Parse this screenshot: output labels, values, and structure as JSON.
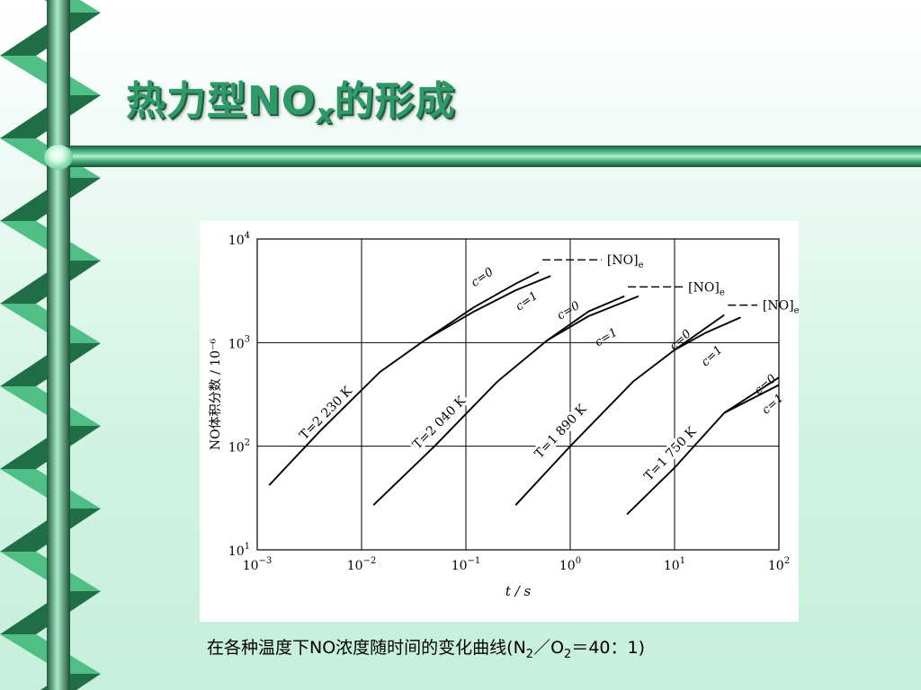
{
  "slide": {
    "title_main": "热力型NO",
    "title_sub": "x",
    "title_end": "的形成",
    "caption_pre": "在各种温度下NO浓度随时间的变化曲线(N",
    "caption_sub1": "2",
    "caption_mid": "／O",
    "caption_sub2": "2",
    "caption_post": "＝40：1)",
    "colors": {
      "accent": "#2f9a68",
      "rail_dark": "#1f6e46",
      "rail_light": "#4fbf86"
    }
  },
  "chart_data": {
    "type": "line",
    "xlabel": "t / s",
    "ylabel": "NO体积分数 / 10⁻⁶",
    "x_scale": "log",
    "y_scale": "log",
    "xlim": [
      0.001,
      100
    ],
    "ylim": [
      10,
      10000
    ],
    "grid": true,
    "x_ticks": [
      {
        "value": 0.001,
        "base": "10",
        "exp": "−3"
      },
      {
        "value": 0.01,
        "base": "10",
        "exp": "−2"
      },
      {
        "value": 0.1,
        "base": "10",
        "exp": "−1"
      },
      {
        "value": 1,
        "base": "10",
        "exp": "0"
      },
      {
        "value": 10,
        "base": "10",
        "exp": "1"
      },
      {
        "value": 100,
        "base": "10",
        "exp": "2"
      }
    ],
    "y_ticks": [
      {
        "value": 10,
        "base": "10",
        "exp": "1"
      },
      {
        "value": 100,
        "base": "10",
        "exp": "2"
      },
      {
        "value": 1000,
        "base": "10",
        "exp": "3"
      },
      {
        "value": 10000,
        "base": "10",
        "exp": "4"
      }
    ],
    "groups": [
      {
        "label": "T=2 230 K",
        "label_at": [
          0.0045,
          210
        ],
        "series": [
          {
            "name": "c=0",
            "points": [
              [
                0.0013,
                42
              ],
              [
                0.004,
                140
              ],
              [
                0.015,
                520
              ],
              [
                0.04,
                1050
              ],
              [
                0.12,
                2200
              ],
              [
                0.3,
                3700
              ],
              [
                0.5,
                4800
              ]
            ]
          },
          {
            "name": "c=1",
            "points": [
              [
                0.04,
                1050
              ],
              [
                0.12,
                2000
              ],
              [
                0.3,
                3200
              ],
              [
                0.65,
                4400
              ]
            ]
          }
        ],
        "c0_label_at": [
          0.15,
          4000
        ],
        "c1_label_at": [
          0.4,
          2350
        ],
        "equilibrium": {
          "label": "[NO]e",
          "value": 6300,
          "from": 0.5,
          "to": 2.0
        }
      },
      {
        "label": "T=2 040 K",
        "label_at": [
          0.055,
          170
        ],
        "series": [
          {
            "name": "c=0",
            "points": [
              [
                0.013,
                27
              ],
              [
                0.05,
                100
              ],
              [
                0.2,
                420
              ],
              [
                0.6,
                1050
              ],
              [
                1.5,
                2000
              ],
              [
                3.3,
                2800
              ]
            ]
          },
          {
            "name": "c=1",
            "points": [
              [
                0.6,
                1050
              ],
              [
                1.5,
                1800
              ],
              [
                4.5,
                2800
              ]
            ]
          }
        ],
        "c0_label_at": [
          1.0,
          1900
        ],
        "c1_label_at": [
          2.3,
          1050
        ],
        "equilibrium": {
          "label": "[NO]e",
          "value": 3450,
          "from": 3.3,
          "to": 12
        },
        "eq_c1_gap": true
      },
      {
        "label": "T=1 890 K",
        "label_at": [
          0.8,
          140
        ],
        "series": [
          {
            "name": "c=0",
            "points": [
              [
                0.3,
                27
              ],
              [
                1.0,
                100
              ],
              [
                4.0,
                420
              ],
              [
                10,
                850
              ],
              [
                30,
                1850
              ]
            ]
          },
          {
            "name": "c=1",
            "points": [
              [
                10,
                850
              ],
              [
                20,
                1250
              ],
              [
                43,
                1750
              ]
            ]
          }
        ],
        "c0_label_at": [
          12,
          1000
        ],
        "c1_label_at": [
          24,
          700
        ],
        "equilibrium": {
          "label": "[NO]e",
          "value": 2300,
          "from": 30,
          "to": 62
        }
      },
      {
        "label": "T=1 750 K",
        "label_at": [
          9,
          85
        ],
        "series": [
          {
            "name": "c=0",
            "points": [
              [
                3.5,
                22
              ],
              [
                10,
                62
              ],
              [
                30,
                210
              ],
              [
                100,
                460
              ]
            ]
          },
          {
            "name": "c=1",
            "points": [
              [
                30,
                210
              ],
              [
                60,
                300
              ],
              [
                100,
                390
              ]
            ]
          }
        ],
        "c0_label_at": [
          78,
          370
        ],
        "c1_label_at": [
          92,
          240
        ]
      }
    ]
  }
}
